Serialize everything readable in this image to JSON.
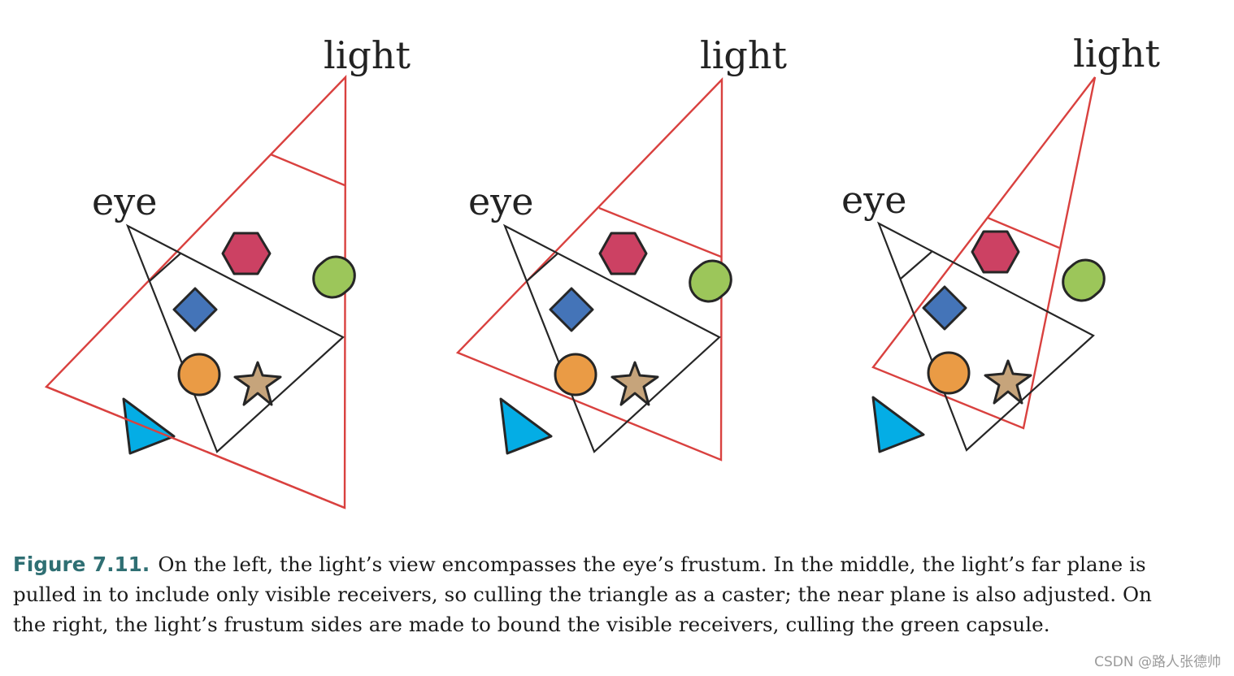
{
  "panels": [
    {
      "id": "left",
      "light_label": "light",
      "eye_label": "eye"
    },
    {
      "id": "middle",
      "light_label": "light",
      "eye_label": "eye"
    },
    {
      "id": "right",
      "light_label": "light",
      "eye_label": "eye"
    }
  ],
  "colors": {
    "light_frustum": "#d9413f",
    "eye_frustum": "#262626",
    "hexagon": "#cc4163",
    "capsule": "#9cc65a",
    "diamond": "#4474b8",
    "circle": "#ea9b45",
    "star": "#c6a47b",
    "triangle": "#04ade5",
    "caption_label": "#2f6f73"
  },
  "icons": [
    "hexagon",
    "capsule",
    "diamond",
    "circle",
    "star",
    "triangle"
  ],
  "caption": {
    "label": "Figure 7.11.",
    "text": "On the left, the light’s view encompasses the eye’s frustum. In the middle, the light’s far plane is pulled in to include only visible receivers, so culling the triangle as a caster; the near plane is also adjusted. On the right, the light’s frustum sides are made to bound the visible receivers, culling the green capsule."
  },
  "watermark": "CSDN @路人张德帅"
}
